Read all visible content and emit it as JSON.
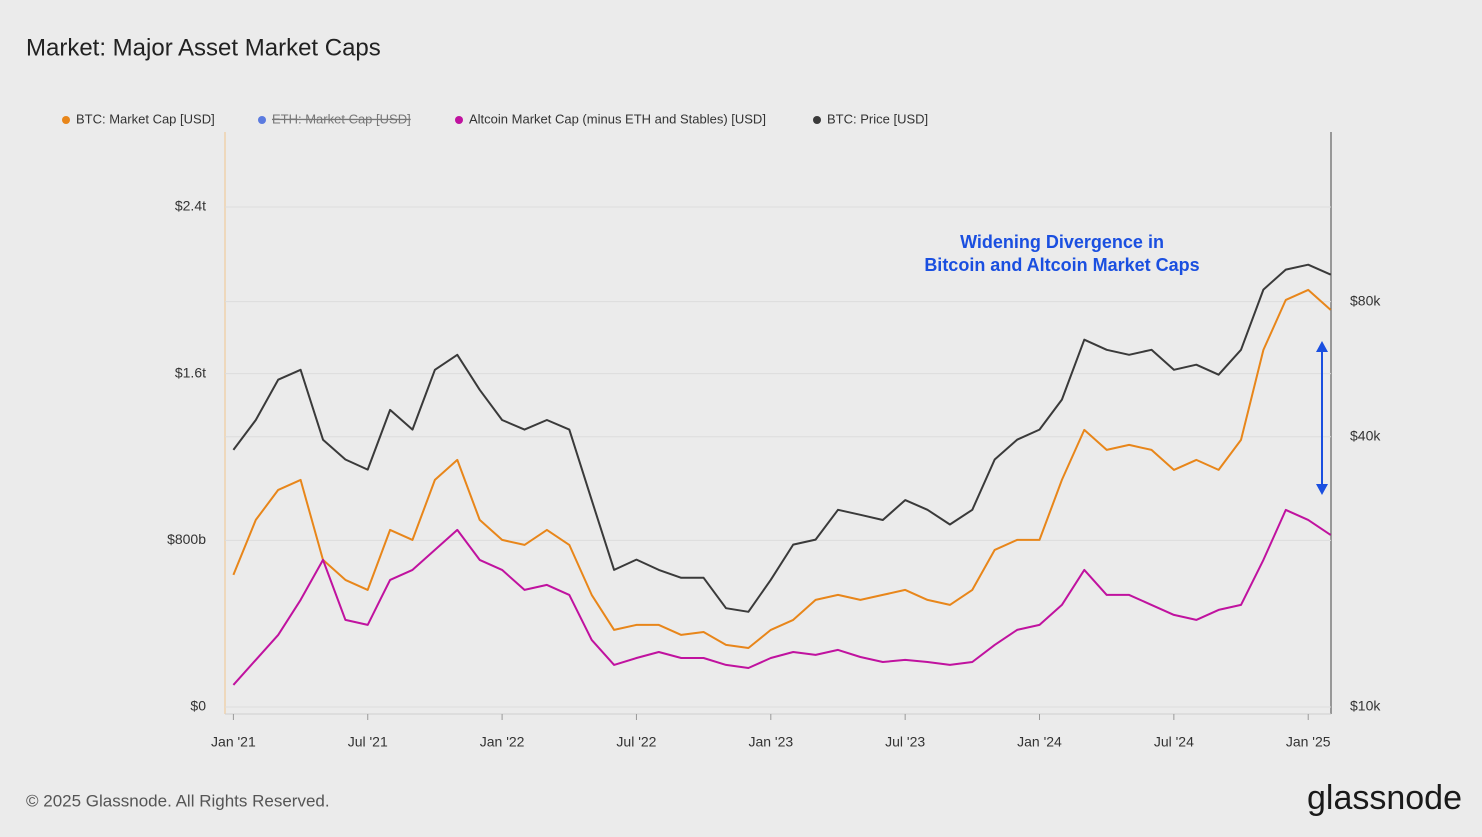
{
  "chart_data": {
    "type": "line",
    "title": "Market: Major Asset Market Caps",
    "x": [
      "2021-01",
      "2021-02",
      "2021-03",
      "2021-04",
      "2021-05",
      "2021-06",
      "2021-07",
      "2021-08",
      "2021-09",
      "2021-10",
      "2021-11",
      "2021-12",
      "2022-01",
      "2022-02",
      "2022-03",
      "2022-04",
      "2022-05",
      "2022-06",
      "2022-07",
      "2022-08",
      "2022-09",
      "2022-10",
      "2022-11",
      "2022-12",
      "2023-01",
      "2023-02",
      "2023-03",
      "2023-04",
      "2023-05",
      "2023-06",
      "2023-07",
      "2023-08",
      "2023-09",
      "2023-10",
      "2023-11",
      "2023-12",
      "2024-01",
      "2024-02",
      "2024-03",
      "2024-04",
      "2024-05",
      "2024-06",
      "2024-07",
      "2024-08",
      "2024-09",
      "2024-10",
      "2024-11",
      "2024-12",
      "2025-01",
      "2025-02"
    ],
    "xlim": [
      "2020-12",
      "2025-03"
    ],
    "xticks": [
      {
        "value": "2021-01",
        "label": "Jan '21"
      },
      {
        "value": "2021-07",
        "label": "Jul '21"
      },
      {
        "value": "2022-01",
        "label": "Jan '22"
      },
      {
        "value": "2022-07",
        "label": "Jul '22"
      },
      {
        "value": "2023-01",
        "label": "Jan '23"
      },
      {
        "value": "2023-07",
        "label": "Jul '23"
      },
      {
        "value": "2024-01",
        "label": "Jan '24"
      },
      {
        "value": "2024-07",
        "label": "Jul '24"
      },
      {
        "value": "2025-01",
        "label": "Jan '25"
      }
    ],
    "ylim": [
      0,
      2760000000000
    ],
    "yticks": [
      {
        "value": 0,
        "label": "$0"
      },
      {
        "value": 800000000000,
        "label": "$800b"
      },
      {
        "value": 1600000000000,
        "label": "$1.6t"
      },
      {
        "value": 2400000000000,
        "label": "$2.4t"
      }
    ],
    "y2lim": [
      10000,
      191000
    ],
    "y2log": true,
    "y2ticks": [
      {
        "value": 10000,
        "label": "$10k"
      },
      {
        "value": 40000,
        "label": "$40k"
      },
      {
        "value": 80000,
        "label": "$80k"
      }
    ],
    "grid": true,
    "series": [
      {
        "name": "BTC: Market Cap [USD]",
        "color": "#e8861a",
        "values": [
          634000000000.0,
          898000000000.0,
          1042000000000.0,
          1090000000000.0,
          706000000000.0,
          610000000000.0,
          562000000000.0,
          850000000000.0,
          802000000000.0,
          1090000000000.0,
          1186000000000.0,
          898000000000.0,
          802000000000.0,
          778000000000.0,
          850000000000.0,
          778000000000.0,
          538000000000.0,
          370000000000.0,
          394000000000.0,
          394000000000.0,
          346000000000.0,
          360000000000.0,
          298000000000.0,
          283000000000.0,
          370000000000.0,
          418000000000.0,
          514000000000.0,
          538000000000.0,
          514000000000.0,
          538000000000.0,
          562000000000.0,
          514000000000.0,
          490000000000.0,
          562000000000.0,
          754000000000.0,
          802000000000.0,
          802000000000.0,
          1090000000000.0,
          1330000000000.0,
          1234000000000.0,
          1258000000000.0,
          1234000000000.0,
          1138000000000.0,
          1186000000000.0,
          1138000000000.0,
          1282000000000.0,
          1714000000000.0,
          1954000000000.0,
          2002000000000.0,
          1906000000000.0
        ]
      },
      {
        "name": "Altcoin Market Cap (minus ETH and Stables) [USD]",
        "color": "#c0129f",
        "values": [
          106000000000.0,
          226000000000.0,
          346000000000.0,
          514000000000.0,
          706000000000.0,
          418000000000.0,
          394000000000.0,
          610000000000.0,
          658000000000.0,
          754000000000.0,
          850000000000.0,
          706000000000.0,
          658000000000.0,
          562000000000.0,
          586000000000.0,
          538000000000.0,
          322000000000.0,
          202000000000.0,
          235000000000.0,
          264000000000.0,
          235000000000.0,
          235000000000.0,
          202000000000.0,
          187000000000.0,
          235000000000.0,
          264000000000.0,
          250000000000.0,
          274000000000.0,
          240000000000.0,
          216000000000.0,
          226000000000.0,
          216000000000.0,
          202000000000.0,
          216000000000.0,
          298000000000.0,
          370000000000.0,
          394000000000.0,
          490000000000.0,
          658000000000.0,
          538000000000.0,
          538000000000.0,
          490000000000.0,
          442000000000.0,
          418000000000.0,
          466000000000.0,
          490000000000.0,
          706000000000.0,
          946000000000.0,
          898000000000.0,
          826000000000.0
        ]
      },
      {
        "name": "BTC: Price [USD]",
        "color": "#3a3a3a",
        "axis": "y2",
        "values": [
          37400,
          43600,
          53600,
          56400,
          39400,
          35600,
          33800,
          45900,
          41500,
          56400,
          60900,
          50900,
          43600,
          41500,
          43600,
          41500,
          28900,
          20200,
          21300,
          20200,
          19400,
          19400,
          16600,
          16300,
          19200,
          23000,
          23600,
          27500,
          26800,
          26100,
          28900,
          27500,
          25500,
          27500,
          35600,
          39400,
          41500,
          48400,
          65800,
          62500,
          60900,
          62500,
          56400,
          57900,
          55000,
          62500,
          85100,
          94300,
          96700,
          91900
        ]
      }
    ],
    "hidden_series": [
      {
        "name": "ETH: Market Cap [USD]",
        "color": "#5b7be0"
      }
    ],
    "annotation": [
      "Widening Divergence in",
      "Bitcoin and Altcoin Market Caps"
    ]
  },
  "footer": {
    "copyright": "© 2025 Glassnode. All Rights Reserved.",
    "brand": "glassnode"
  }
}
